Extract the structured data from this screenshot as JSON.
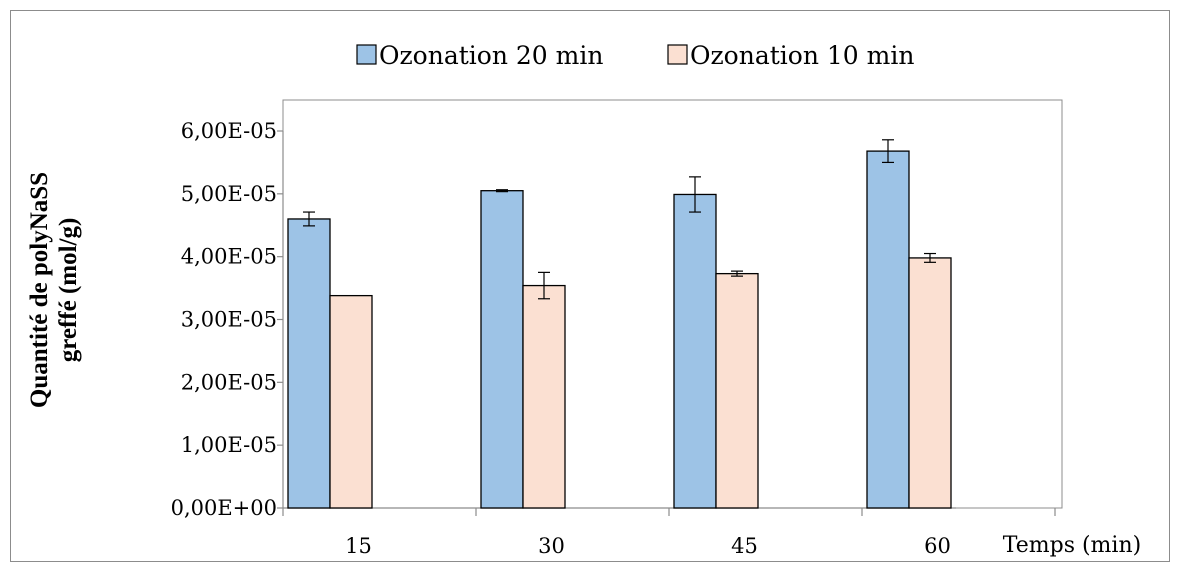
{
  "chart_data": {
    "type": "bar",
    "categories": [
      "15",
      "30",
      "45",
      "60"
    ],
    "series": [
      {
        "name": "Ozonation 20 min",
        "color": "#9dc3e6",
        "values": [
          4.6e-05,
          5.05e-05,
          4.99e-05,
          5.68e-05
        ],
        "errors": [
          1.1e-06,
          1.5e-07,
          2.8e-06,
          1.8e-06
        ]
      },
      {
        "name": "Ozonation 10 min",
        "color": "#fbe0d2",
        "values": [
          3.38e-05,
          3.54e-05,
          3.73e-05,
          3.98e-05
        ],
        "errors": [
          0,
          2.1e-06,
          4e-07,
          7e-07
        ]
      }
    ],
    "ylabel_line1": "Quantité de polyNaSS",
    "ylabel_line2": "greffé (mol/g)",
    "xlabel": "Temps (min)",
    "ylim": [
      0,
      6e-05
    ],
    "yticks": [
      "0,00E+00",
      "1,00E-05",
      "2,00E-05",
      "3,00E-05",
      "4,00E-05",
      "5,00E-05",
      "6,00E-05"
    ],
    "grid": false,
    "legend_position": "top"
  }
}
